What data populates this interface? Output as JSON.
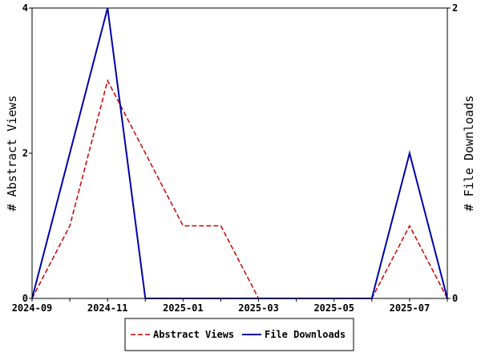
{
  "chart_data": {
    "type": "line",
    "x": [
      "2024-09",
      "2024-10",
      "2024-11",
      "2024-12",
      "2025-01",
      "2025-02",
      "2025-03",
      "2025-04",
      "2025-05",
      "2025-06",
      "2025-07",
      "2025-08"
    ],
    "x_tick_labels": [
      "2024-09",
      "2024-11",
      "2025-01",
      "2025-03",
      "2025-05",
      "2025-07"
    ],
    "ylabel_left": "# Abstract Views",
    "ylabel_right": "# File Downloads",
    "ylim_left": [
      0,
      4
    ],
    "ylim_right": [
      0,
      2
    ],
    "left_tick_labels": [
      "0",
      "2",
      "4"
    ],
    "right_tick_labels": [
      "0",
      "2"
    ],
    "legend_placement": "bottom",
    "series": [
      {
        "name": "Abstract Views",
        "axis": "left",
        "style": "dashed",
        "color": "#cc0000",
        "values": [
          0,
          1,
          3,
          2,
          1,
          1,
          0,
          0,
          0,
          0,
          1,
          0
        ]
      },
      {
        "name": "File Downloads",
        "axis": "right",
        "style": "solid",
        "color": "#0000aa",
        "values": [
          0,
          1,
          2,
          0,
          0,
          0,
          0,
          0,
          0,
          0,
          1,
          0
        ]
      }
    ]
  }
}
